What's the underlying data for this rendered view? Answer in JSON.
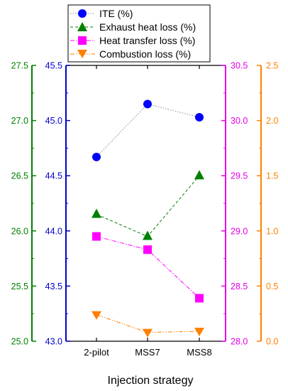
{
  "chart_data": {
    "type": "line",
    "xlabel": "Injection strategy",
    "categories": [
      "2-pilot",
      "MSS7",
      "MSS8"
    ],
    "axes": {
      "exhaust": {
        "color": "#008000",
        "ylim": [
          25.0,
          27.5
        ],
        "ticks": [
          "25.0",
          "25.5",
          "26.0",
          "26.5",
          "27.0",
          "27.5"
        ]
      },
      "ite": {
        "color": "#0000cc",
        "ylim": [
          43.0,
          45.5
        ],
        "ticks": [
          "43.0",
          "43.5",
          "44.0",
          "44.5",
          "45.0",
          "45.5"
        ]
      },
      "heat": {
        "color": "#e600e6",
        "ylim": [
          28.0,
          30.5
        ],
        "ticks": [
          "28.0",
          "28.5",
          "29.0",
          "29.5",
          "30.0",
          "30.5"
        ]
      },
      "combustion": {
        "color": "#ff8000",
        "ylim": [
          0.0,
          2.5
        ],
        "ticks": [
          "0.0",
          "0.5",
          "1.0",
          "1.5",
          "2.0",
          "2.5"
        ]
      }
    },
    "series": [
      {
        "name": "ITE (%)",
        "axis": "ite",
        "marker": "circle",
        "color": "#0000ff",
        "line_color": "#8c8c8c",
        "values": [
          44.67,
          45.15,
          45.03
        ]
      },
      {
        "name": "Exhaust heat loss (%)",
        "axis": "exhaust",
        "marker": "triangle-up",
        "color": "#008000",
        "line_color": "#008000",
        "values": [
          26.15,
          25.95,
          26.5
        ]
      },
      {
        "name": "Heat transfer loss (%)",
        "axis": "heat",
        "marker": "square",
        "color": "#ff00ff",
        "line_color": "#ff00ff",
        "values": [
          28.95,
          28.83,
          28.39
        ]
      },
      {
        "name": "Combustion loss (%)",
        "axis": "combustion",
        "marker": "triangle-down",
        "color": "#ff8000",
        "line_color": "#ff8000",
        "values": [
          0.24,
          0.08,
          0.09
        ]
      }
    ]
  }
}
